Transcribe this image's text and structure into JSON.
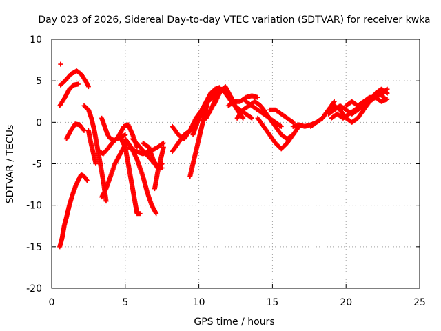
{
  "chart_data": {
    "type": "scatter",
    "title": "Day 023 of 2026, Sidereal Day-to-day VTEC variation (SDTVAR) for receiver kwka",
    "xlabel": "GPS time / hours",
    "ylabel": "SDTVAR / TECUs",
    "xlim": [
      0,
      25
    ],
    "ylim": [
      -20,
      10
    ],
    "xticks": [
      "0",
      "5",
      "10",
      "15",
      "20",
      "25"
    ],
    "yticks": [
      "-20",
      "-15",
      "-10",
      "-5",
      "0",
      "5",
      "10"
    ],
    "grid": true,
    "legend": "none",
    "marker": "+",
    "series_color": "#ff0000",
    "tracks": [
      {
        "x": [
          0.6,
          0.9,
          1.3,
          1.7,
          2.0,
          2.3,
          2.5
        ],
        "y": [
          4.5,
          5.0,
          5.8,
          6.2,
          5.8,
          5.0,
          4.3
        ]
      },
      {
        "x": [
          0.55,
          0.9,
          1.2,
          1.5,
          1.8
        ],
        "y": [
          2.0,
          3.0,
          4.0,
          4.5,
          4.6
        ]
      },
      {
        "x": [
          1.0,
          1.3,
          1.6,
          1.9,
          2.2
        ],
        "y": [
          -2.0,
          -1.0,
          -0.2,
          -0.3,
          -1.0
        ]
      },
      {
        "x": [
          0.55,
          0.7,
          0.85,
          1.0,
          1.2,
          1.4,
          1.6,
          1.8,
          2.0,
          2.2,
          2.4
        ],
        "y": [
          -15.0,
          -14.0,
          -12.5,
          -11.5,
          -10.0,
          -8.8,
          -7.8,
          -7.0,
          -6.3,
          -6.5,
          -7.0
        ]
      },
      {
        "x": [
          2.2,
          2.5,
          2.7,
          2.9,
          3.1,
          3.3,
          3.5,
          3.7
        ],
        "y": [
          2.0,
          1.5,
          0.5,
          -1.0,
          -3.0,
          -5.0,
          -7.0,
          -9.5
        ]
      },
      {
        "x": [
          2.5,
          2.6,
          2.8,
          3.0
        ],
        "y": [
          -1.0,
          -2.0,
          -3.5,
          -5.0
        ]
      },
      {
        "x": [
          3.2,
          3.5,
          3.8,
          4.1,
          4.4,
          4.7,
          5.0
        ],
        "y": [
          -3.5,
          -3.8,
          -3.2,
          -2.5,
          -2.0,
          -1.8,
          -1.5
        ]
      },
      {
        "x": [
          3.4,
          3.7,
          4.0,
          4.3,
          4.6,
          4.9,
          5.1
        ],
        "y": [
          -9.0,
          -8.0,
          -6.5,
          -5.0,
          -4.0,
          -3.0,
          -2.5
        ]
      },
      {
        "x": [
          3.4,
          3.6,
          3.8,
          4.0,
          4.3,
          4.6,
          4.9,
          5.2,
          5.5,
          5.8
        ],
        "y": [
          0.5,
          -0.5,
          -1.5,
          -2.0,
          -2.2,
          -1.5,
          -0.5,
          -0.3,
          -1.5,
          -3.0
        ]
      },
      {
        "x": [
          4.7,
          5.0,
          5.2,
          5.4,
          5.6,
          5.8,
          6.0
        ],
        "y": [
          -2.0,
          -3.0,
          -5.0,
          -7.0,
          -9.0,
          -11.0,
          -11.0
        ]
      },
      {
        "x": [
          5.0,
          5.4,
          5.8,
          6.2,
          6.5,
          6.8,
          7.1
        ],
        "y": [
          -2.0,
          -3.0,
          -4.5,
          -6.5,
          -8.5,
          -10.0,
          -11.0
        ]
      },
      {
        "x": [
          5.2,
          5.7,
          6.2,
          6.7,
          7.2,
          7.6
        ],
        "y": [
          -3.0,
          -3.5,
          -3.8,
          -3.5,
          -3.0,
          -2.5
        ]
      },
      {
        "x": [
          6.2,
          6.6,
          6.9,
          7.2,
          7.5
        ],
        "y": [
          -2.5,
          -3.0,
          -4.5,
          -5.5,
          -5.0
        ]
      },
      {
        "x": [
          5.5,
          6.0,
          6.5,
          6.9,
          7.2,
          7.5
        ],
        "y": [
          -2.0,
          -3.0,
          -4.0,
          -4.8,
          -5.5,
          -5.5
        ]
      },
      {
        "x": [
          7.0,
          7.2,
          7.4,
          7.6
        ],
        "y": [
          -8.0,
          -6.0,
          -4.5,
          -3.0
        ]
      },
      {
        "x": [
          8.2,
          8.6,
          9.0,
          9.4,
          9.8,
          10.2,
          10.6,
          11.0,
          11.5
        ],
        "y": [
          -3.5,
          -2.5,
          -1.5,
          -1.0,
          0.0,
          1.0,
          2.5,
          3.5,
          4.0
        ]
      },
      {
        "x": [
          8.2,
          8.6,
          9.0,
          9.4,
          9.8,
          10.2,
          10.6,
          11.0,
          11.4
        ],
        "y": [
          -0.5,
          -1.5,
          -2.0,
          -1.0,
          0.5,
          1.5,
          2.5,
          3.0,
          3.5
        ]
      },
      {
        "x": [
          9.4,
          9.6,
          9.8,
          10.0,
          10.2,
          10.4,
          10.6,
          10.8
        ],
        "y": [
          -6.5,
          -5.0,
          -3.5,
          -2.0,
          -0.5,
          1.0,
          2.5,
          3.5
        ]
      },
      {
        "x": [
          9.6,
          9.9,
          10.2,
          10.5,
          10.8,
          11.1,
          11.4
        ],
        "y": [
          -1.5,
          0.0,
          1.5,
          2.5,
          3.5,
          4.0,
          4.2
        ]
      },
      {
        "x": [
          10.5,
          10.8,
          11.2,
          11.6,
          12.0,
          12.4,
          12.8,
          13.2,
          13.6
        ],
        "y": [
          0.5,
          1.5,
          3.0,
          4.0,
          3.0,
          2.0,
          1.5,
          1.0,
          0.5
        ]
      },
      {
        "x": [
          11.0,
          11.4,
          11.8,
          12.2,
          12.6,
          13.0
        ],
        "y": [
          2.0,
          3.5,
          4.3,
          3.0,
          1.5,
          0.5
        ]
      },
      {
        "x": [
          12.0,
          12.4,
          12.8,
          13.2,
          13.6,
          14.0
        ],
        "y": [
          2.0,
          2.5,
          2.5,
          3.0,
          3.2,
          3.0
        ]
      },
      {
        "x": [
          12.6,
          13.0,
          13.4,
          13.8,
          14.2,
          14.6
        ],
        "y": [
          0.5,
          1.5,
          2.0,
          2.5,
          2.0,
          1.0
        ]
      },
      {
        "x": [
          13.2,
          13.6,
          14.0,
          14.4,
          14.8,
          15.2,
          15.6
        ],
        "y": [
          2.5,
          2.0,
          1.5,
          1.0,
          0.5,
          0.0,
          -0.5
        ]
      },
      {
        "x": [
          14.0,
          14.4,
          14.8,
          15.2,
          15.6,
          16.0,
          16.4
        ],
        "y": [
          0.5,
          -0.5,
          -1.5,
          -2.5,
          -3.2,
          -2.5,
          -1.5
        ]
      },
      {
        "x": [
          14.4,
          14.8,
          15.2,
          15.6,
          16.0,
          16.4,
          16.8
        ],
        "y": [
          1.5,
          0.5,
          -0.5,
          -1.5,
          -2.0,
          -1.5,
          -0.5
        ]
      },
      {
        "x": [
          14.8,
          15.2,
          15.6,
          16.0,
          16.4
        ],
        "y": [
          1.5,
          1.5,
          1.0,
          0.5,
          0.0
        ]
      },
      {
        "x": [
          16.4,
          16.8,
          17.2,
          17.6,
          18.0,
          18.4,
          18.8,
          19.2
        ],
        "y": [
          -0.5,
          -0.3,
          -0.5,
          -0.3,
          0.0,
          0.5,
          1.5,
          2.5
        ]
      },
      {
        "x": [
          17.6,
          18.0,
          18.4,
          18.8,
          19.2,
          19.6
        ],
        "y": [
          -0.5,
          0.0,
          0.5,
          1.5,
          2.0,
          1.5
        ]
      },
      {
        "x": [
          18.8,
          19.2,
          19.6,
          20.0,
          20.4,
          20.8,
          21.2,
          21.6,
          22.0,
          22.4,
          22.8
        ],
        "y": [
          1.0,
          1.5,
          2.0,
          1.5,
          1.0,
          1.5,
          2.0,
          2.5,
          3.0,
          3.5,
          4.0
        ]
      },
      {
        "x": [
          19.0,
          19.4,
          19.8,
          20.2,
          20.6,
          21.0,
          21.4,
          21.8,
          22.2,
          22.6
        ],
        "y": [
          0.5,
          1.0,
          0.5,
          1.0,
          1.5,
          2.0,
          2.5,
          3.0,
          3.5,
          3.0
        ]
      },
      {
        "x": [
          19.6,
          20.0,
          20.4,
          20.8,
          21.2,
          21.6,
          22.0,
          22.4,
          22.8
        ],
        "y": [
          1.5,
          0.5,
          0.0,
          0.5,
          1.5,
          2.5,
          3.5,
          4.0,
          3.5
        ]
      },
      {
        "x": [
          20.0,
          20.4,
          20.8,
          21.2,
          21.6,
          22.0,
          22.4,
          22.8
        ],
        "y": [
          2.0,
          2.5,
          2.0,
          2.5,
          3.0,
          3.0,
          2.5,
          2.8
        ]
      }
    ],
    "isolated_points": [
      {
        "x": 0.6,
        "y": 7.0
      }
    ]
  }
}
